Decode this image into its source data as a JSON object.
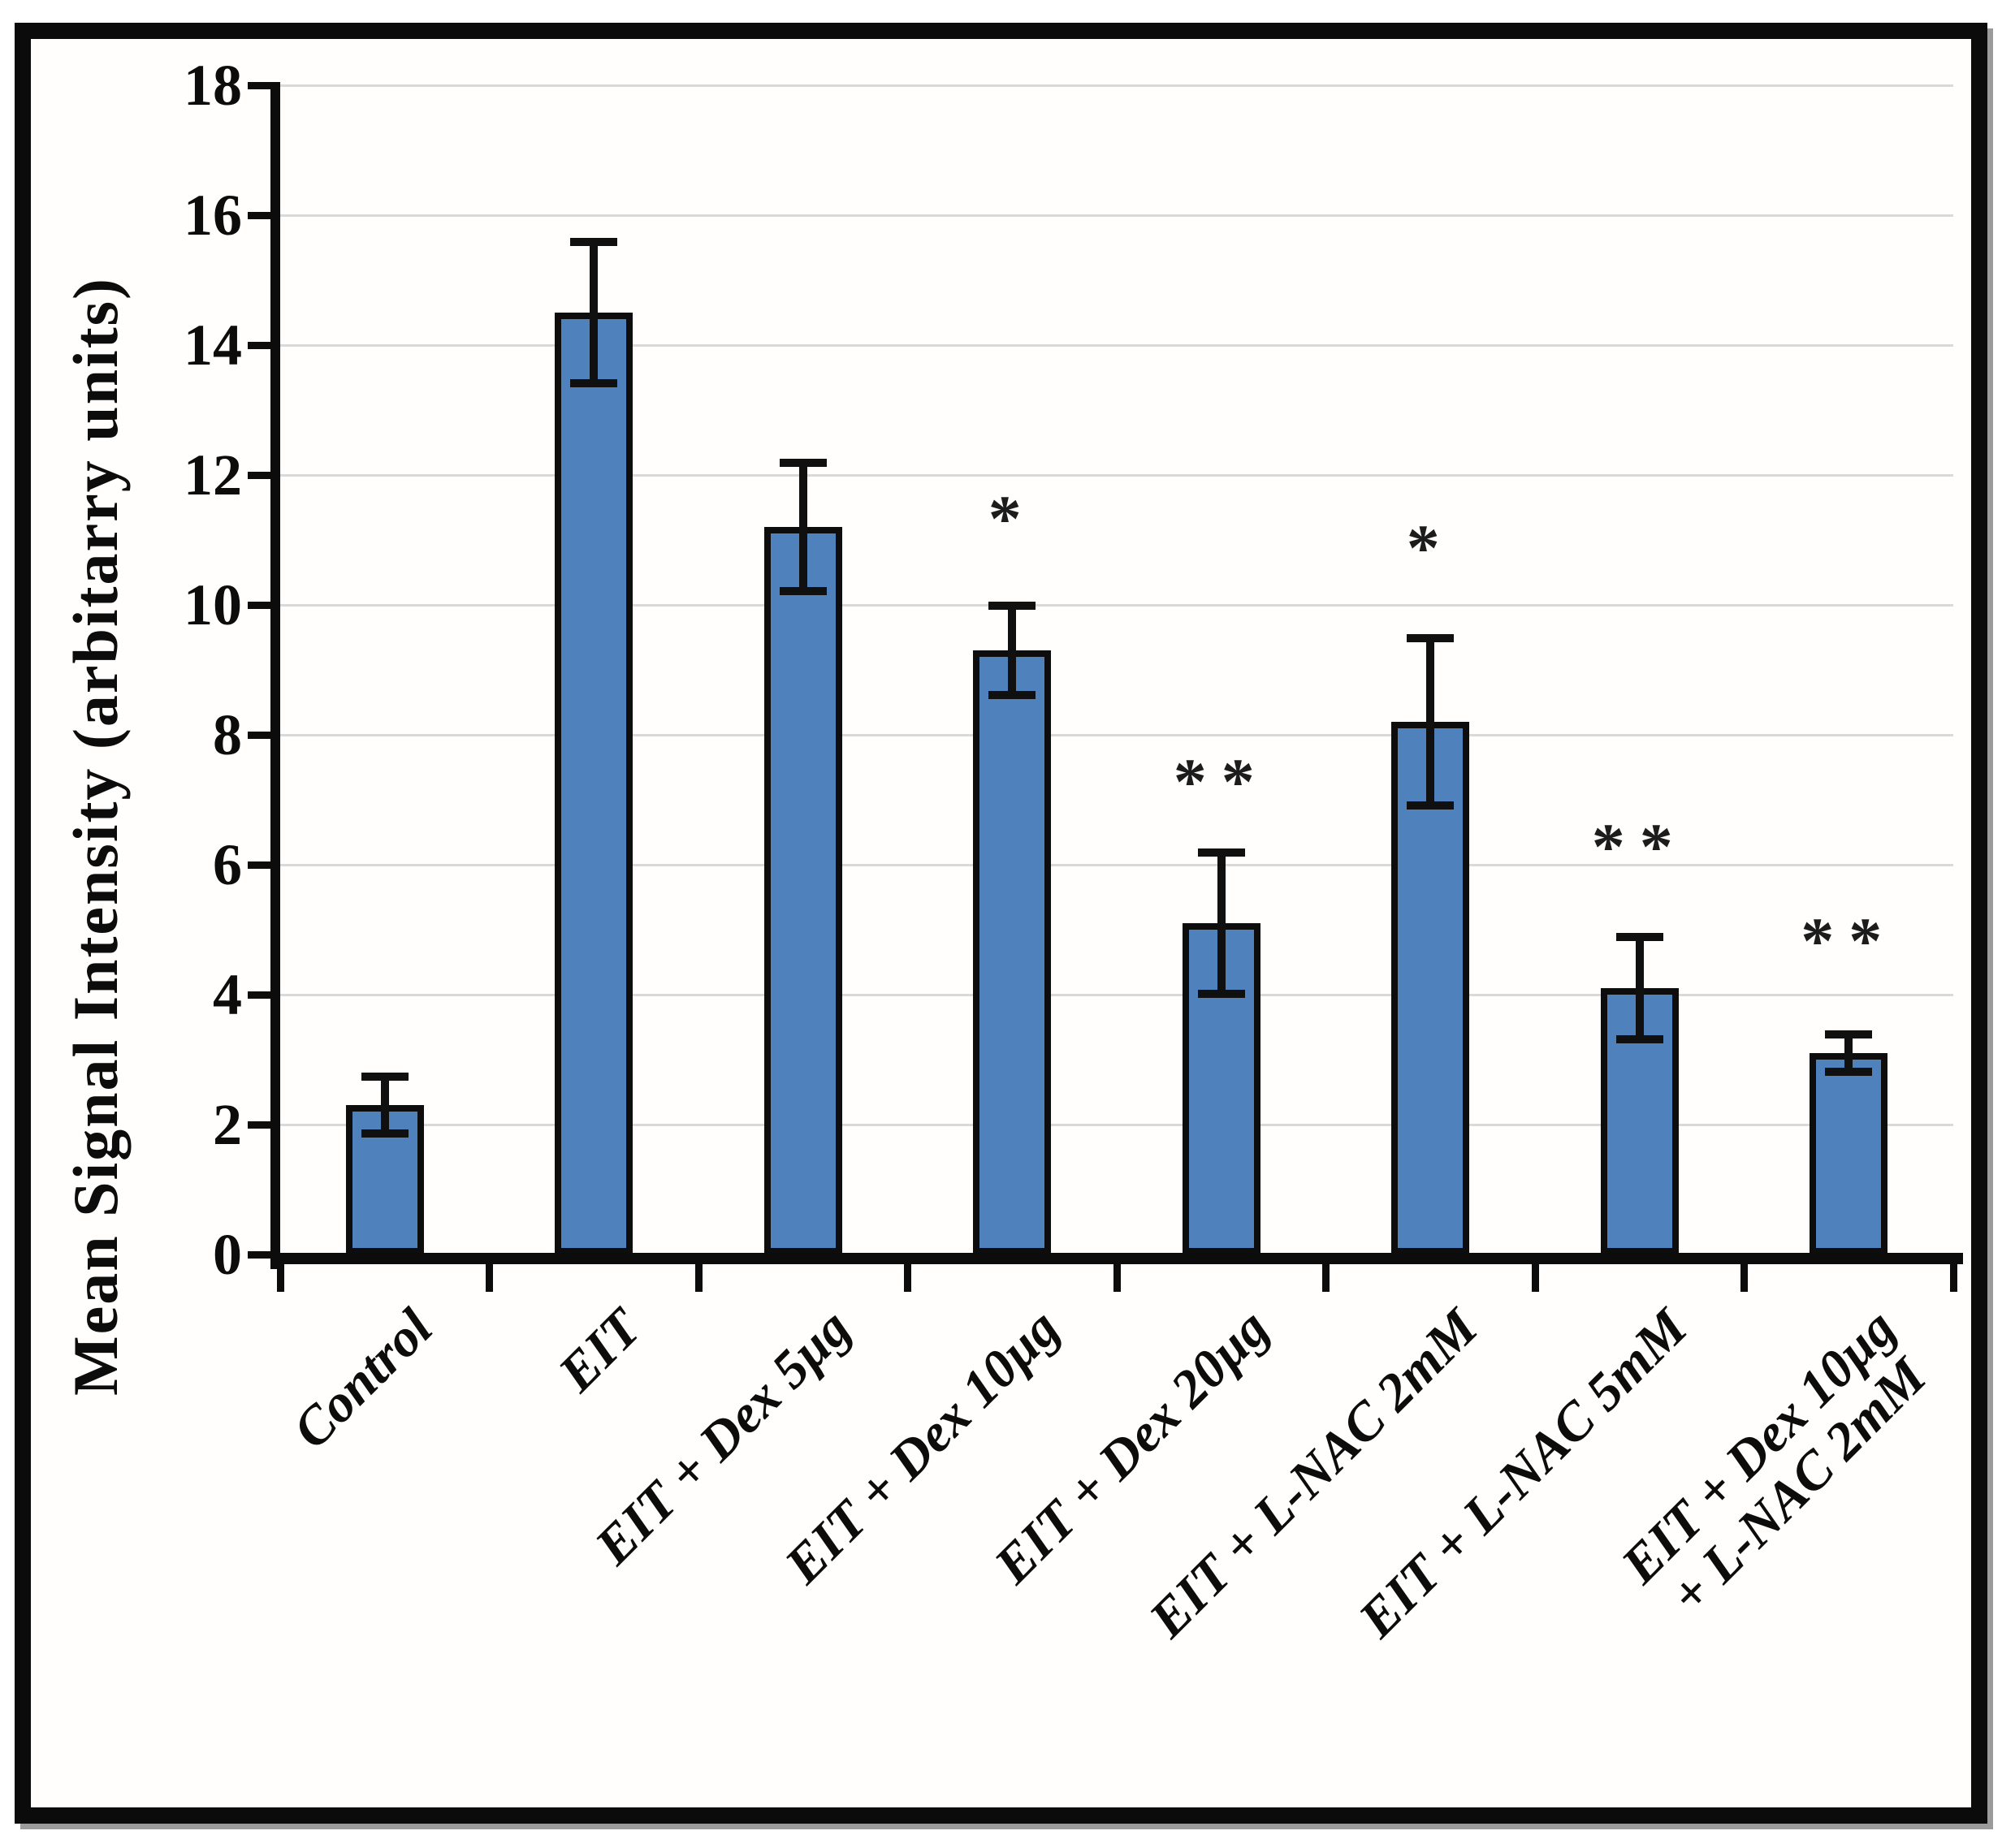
{
  "figure": {
    "frame_color": "#0b0b0b",
    "background_color": "#ffffff",
    "plot_background": "#fffefc"
  },
  "chart_data": {
    "type": "bar",
    "title": "",
    "xlabel": "",
    "ylabel": "Mean Signal Intensity (arbitarry units)",
    "ylim": [
      0,
      18
    ],
    "yticks": [
      0,
      2,
      4,
      6,
      8,
      10,
      12,
      14,
      16,
      18
    ],
    "grid": {
      "horizontal": true,
      "color": "#d9d9d9"
    },
    "legend": "none",
    "bar_color": "#4f81bd",
    "bar_border_color": "#0d0d0d",
    "error_bar_color": "#101010",
    "categories": [
      "Control",
      "EIT",
      "EIT + Dex 5µg",
      "EIT + Dex 10µg",
      "EIT + Dex 20µg",
      "EIT + L-NAC 2mM",
      "EIT + L-NAC 5mM",
      "EIT + Dex 10µg + L-NAC 2mM"
    ],
    "category_label_lines": [
      [
        "Control"
      ],
      [
        "EIT"
      ],
      [
        "EIT + Dex 5µg"
      ],
      [
        "EIT + Dex 10µg"
      ],
      [
        "EIT + Dex 20µg"
      ],
      [
        "EIT + L-NAC 2mM"
      ],
      [
        "EIT + L-NAC 5mM"
      ],
      [
        "EIT + Dex 10µg",
        "+ L-NAC 2mM"
      ]
    ],
    "values": [
      2.3,
      14.5,
      11.2,
      9.3,
      5.1,
      8.2,
      4.1,
      3.1
    ],
    "errors": [
      0.45,
      1.1,
      1.0,
      0.7,
      1.1,
      1.3,
      0.8,
      0.3
    ],
    "significance_markers": [
      "",
      "",
      "",
      "*",
      "**",
      "*",
      "**",
      "**"
    ],
    "marker_y": [
      null,
      null,
      null,
      11.5,
      7.45,
      11.05,
      6.45,
      5.0
    ]
  }
}
